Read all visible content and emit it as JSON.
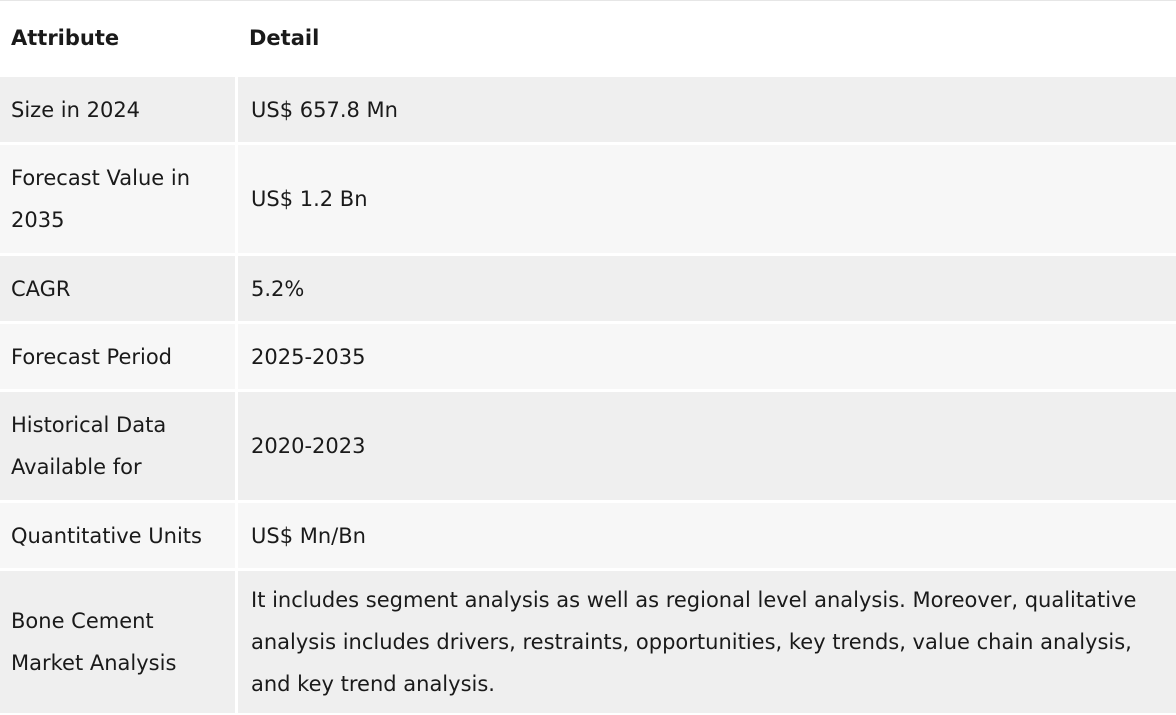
{
  "table": {
    "headers": {
      "attribute": "Attribute",
      "detail": "Detail"
    },
    "rows": [
      {
        "attribute": "Size in 2024",
        "detail": "US$ 657.8 Mn"
      },
      {
        "attribute": "Forecast Value in 2035",
        "detail": "US$ 1.2 Bn"
      },
      {
        "attribute": "CAGR",
        "detail": "5.2%"
      },
      {
        "attribute": "Forecast Period",
        "detail": "2025-2035"
      },
      {
        "attribute": "Historical Data Available for",
        "detail": "2020-2023"
      },
      {
        "attribute": "Quantitative Units",
        "detail": "US$ Mn/Bn"
      },
      {
        "attribute": "Bone Cement Market Analysis",
        "detail": "It includes segment analysis as well as regional level analysis. Moreover, qualitative analysis includes drivers, restraints, opportunities, key trends, value chain analysis, and key trend analysis."
      }
    ]
  }
}
